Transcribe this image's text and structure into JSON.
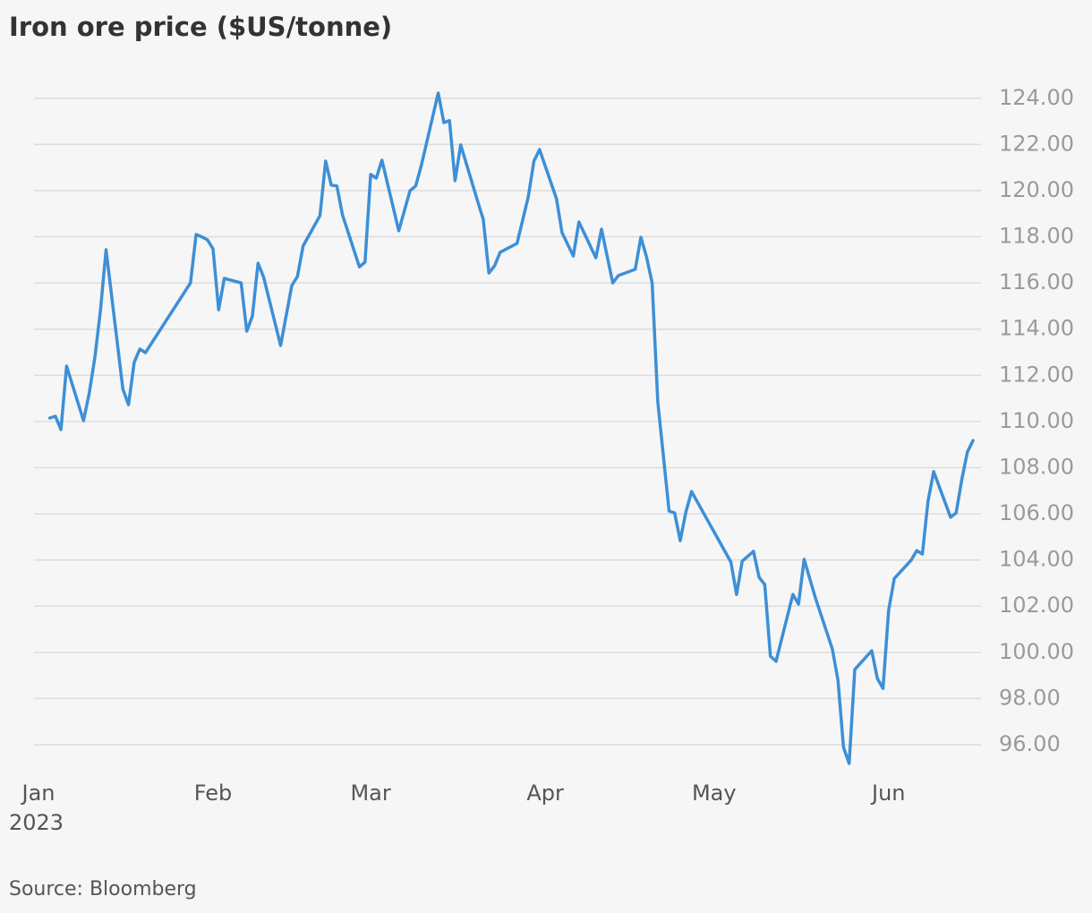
{
  "chart_data": {
    "type": "line",
    "title": "Iron ore price ($US/tonne)",
    "source": "Source: Bloomberg",
    "x_sublabel": "2023",
    "x": [
      3,
      4,
      5,
      6,
      9,
      10,
      11,
      12,
      13,
      16,
      17,
      18,
      19,
      20,
      28,
      29,
      30,
      31,
      32,
      33,
      34,
      37,
      38,
      39,
      40,
      41,
      44,
      46,
      47,
      48,
      51,
      52,
      53,
      54,
      55,
      58,
      59,
      60,
      61,
      62,
      65,
      67,
      68,
      69,
      72,
      73,
      74,
      75,
      76,
      79,
      80,
      81,
      82,
      83,
      86,
      87,
      88,
      89,
      90,
      93,
      94,
      96,
      97,
      100,
      101,
      103,
      104,
      107,
      108,
      109,
      110,
      111,
      113,
      114,
      115,
      116,
      117,
      124,
      125,
      126,
      128,
      129,
      130,
      131,
      132,
      135,
      136,
      137,
      139,
      142,
      143,
      144,
      145,
      146,
      149,
      150,
      151,
      152,
      153,
      156,
      157,
      158,
      159,
      160,
      163,
      164,
      165,
      166,
      167
    ],
    "series": [
      {
        "name": "Iron ore price",
        "color": "#3d8fd6",
        "values": [
          110.15,
          110.23,
          109.65,
          112.4,
          110.04,
          111.2,
          112.75,
          114.8,
          117.44,
          111.4,
          110.73,
          112.56,
          113.14,
          112.98,
          116.0,
          118.1,
          118.0,
          117.87,
          117.48,
          114.84,
          116.2,
          116.0,
          113.91,
          114.57,
          116.86,
          116.24,
          113.29,
          115.89,
          116.28,
          117.6,
          118.92,
          121.28,
          120.24,
          120.2,
          118.95,
          116.7,
          116.9,
          120.7,
          120.54,
          121.32,
          118.26,
          120.0,
          120.2,
          121.09,
          124.23,
          122.95,
          123.03,
          120.43,
          121.98,
          119.54,
          118.76,
          116.43,
          116.74,
          117.33,
          117.71,
          118.72,
          119.73,
          121.28,
          121.78,
          119.65,
          118.18,
          117.17,
          118.64,
          117.09,
          118.33,
          116.0,
          116.32,
          116.59,
          117.98,
          117.13,
          116.0,
          110.85,
          106.12,
          106.04,
          104.84,
          106.08,
          106.97,
          103.91,
          102.51,
          103.95,
          104.38,
          103.25,
          102.94,
          99.84,
          99.61,
          102.51,
          102.09,
          104.03,
          102.36,
          100.15,
          98.79,
          95.88,
          95.19,
          99.26,
          100.07,
          98.87,
          98.44,
          101.82,
          103.2,
          103.99,
          104.41,
          104.26,
          106.55,
          107.83,
          105.85,
          106.04,
          107.48,
          108.68,
          109.18
        ]
      }
    ],
    "xlim": [
      0,
      168
    ],
    "xticks": [
      {
        "value": 1,
        "label": "Jan"
      },
      {
        "value": 32,
        "label": "Feb"
      },
      {
        "value": 60,
        "label": "Mar"
      },
      {
        "value": 91,
        "label": "Apr"
      },
      {
        "value": 121,
        "label": "May"
      },
      {
        "value": 152,
        "label": "Jun"
      }
    ],
    "ylim": [
      95,
      125
    ],
    "yticks": [
      {
        "value": 96,
        "label": "96.00"
      },
      {
        "value": 98,
        "label": "98.00"
      },
      {
        "value": 100,
        "label": "100.00"
      },
      {
        "value": 102,
        "label": "102.00"
      },
      {
        "value": 104,
        "label": "104.00"
      },
      {
        "value": 106,
        "label": "106.00"
      },
      {
        "value": 108,
        "label": "108.00"
      },
      {
        "value": 110,
        "label": "110.00"
      },
      {
        "value": 112,
        "label": "112.00"
      },
      {
        "value": 114,
        "label": "114.00"
      },
      {
        "value": 116,
        "label": "116.00"
      },
      {
        "value": 118,
        "label": "118.00"
      },
      {
        "value": 120,
        "label": "120.00"
      },
      {
        "value": 122,
        "label": "122.00"
      },
      {
        "value": 124,
        "label": "124.00"
      }
    ],
    "grid": true
  }
}
